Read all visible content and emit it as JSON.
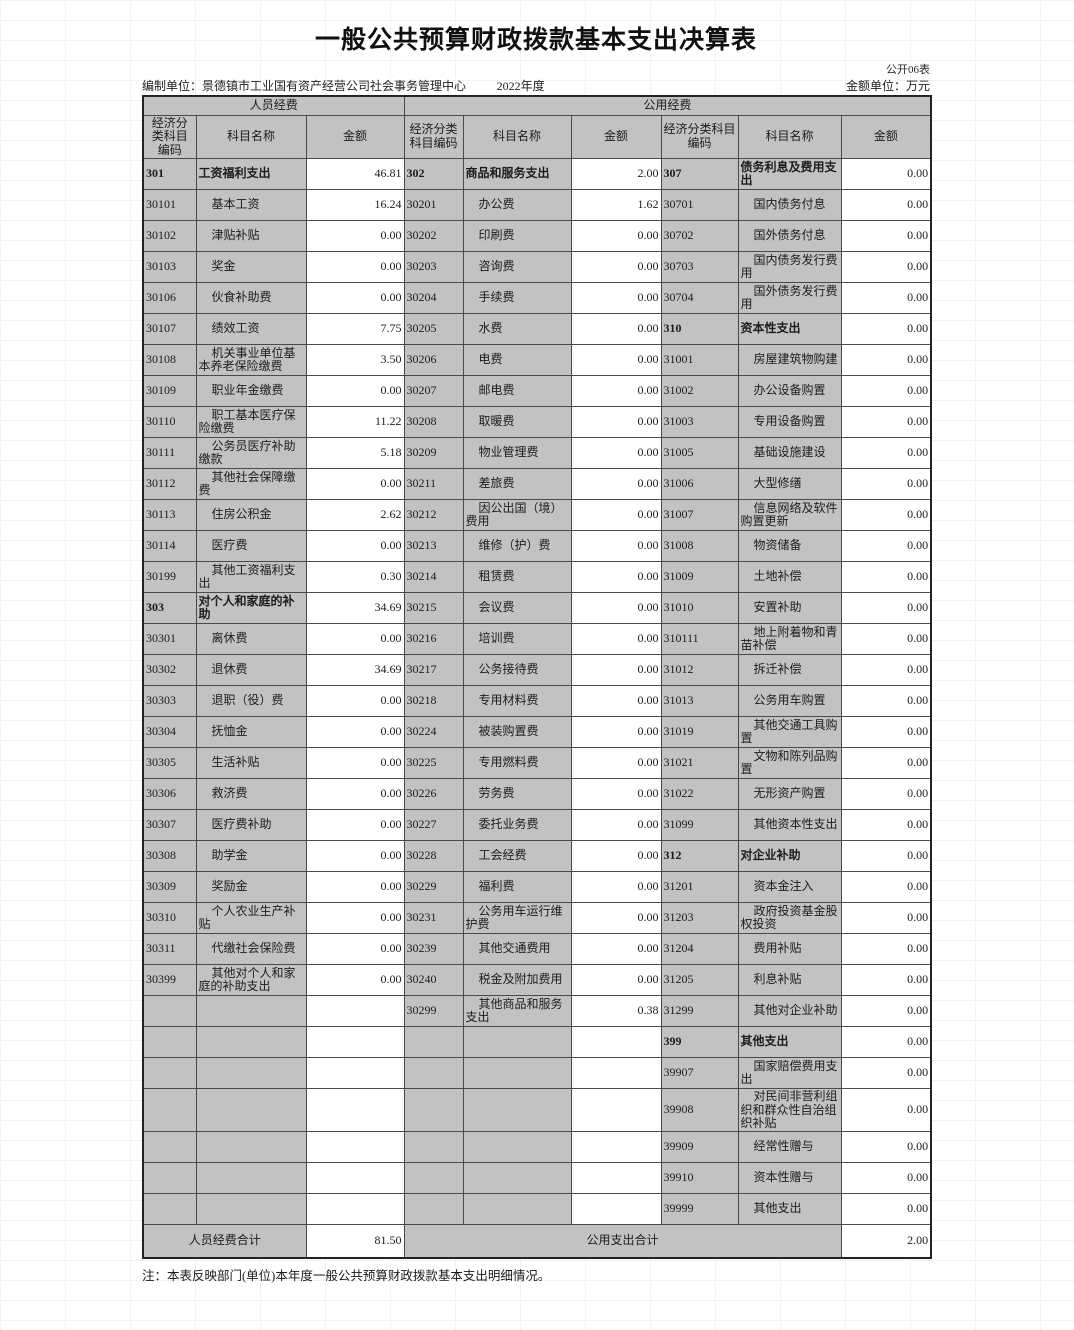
{
  "meta": {
    "title": "一般公共预算财政拨款基本支出决算表",
    "doc_code": "公开06表",
    "prepared_by": "编制单位：景德镇市工业国有资产经营公司社会事务管理中心",
    "fiscal_year": "2022年度",
    "amount_unit": "金额单位：万元",
    "footnote": "注：本表反映部门(单位)本年度一般公共预算财政拨款基本支出明细情况。"
  },
  "colors": {
    "cell_gray": "#c2c2c2",
    "border": "#4a4a4a",
    "background": "#ffffff"
  },
  "table": {
    "groups": [
      "人员经费",
      "公用经费"
    ],
    "columns": [
      "经济分类科目编码",
      "科目名称",
      "金额",
      "经济分类科目编码",
      "科目名称",
      "金额",
      "经济分类科目编码",
      "科目名称",
      "金额"
    ],
    "rows": [
      [
        [
          "301",
          "工资福利支出",
          "46.81",
          "b"
        ],
        [
          "302",
          "商品和服务支出",
          "2.00",
          "b"
        ],
        [
          "307",
          "债务利息及费用支出",
          "0.00",
          "b"
        ]
      ],
      [
        [
          "30101",
          "基本工资",
          "16.24",
          ""
        ],
        [
          "30201",
          "办公费",
          "1.62",
          ""
        ],
        [
          "30701",
          "国内债务付息",
          "0.00",
          ""
        ]
      ],
      [
        [
          "30102",
          "津贴补贴",
          "0.00",
          ""
        ],
        [
          "30202",
          "印刷费",
          "0.00",
          ""
        ],
        [
          "30702",
          "国外债务付息",
          "0.00",
          ""
        ]
      ],
      [
        [
          "30103",
          "奖金",
          "0.00",
          ""
        ],
        [
          "30203",
          "咨询费",
          "0.00",
          ""
        ],
        [
          "30703",
          "国内债务发行费用",
          "0.00",
          ""
        ]
      ],
      [
        [
          "30106",
          "伙食补助费",
          "0.00",
          ""
        ],
        [
          "30204",
          "手续费",
          "0.00",
          ""
        ],
        [
          "30704",
          "国外债务发行费用",
          "0.00",
          ""
        ]
      ],
      [
        [
          "30107",
          "绩效工资",
          "7.75",
          ""
        ],
        [
          "30205",
          "水费",
          "0.00",
          ""
        ],
        [
          "310",
          "资本性支出",
          "0.00",
          "b"
        ]
      ],
      [
        [
          "30108",
          "机关事业单位基本养老保险缴费",
          "3.50",
          ""
        ],
        [
          "30206",
          "电费",
          "0.00",
          ""
        ],
        [
          "31001",
          "房屋建筑物购建",
          "0.00",
          ""
        ]
      ],
      [
        [
          "30109",
          "职业年金缴费",
          "0.00",
          ""
        ],
        [
          "30207",
          "邮电费",
          "0.00",
          ""
        ],
        [
          "31002",
          "办公设备购置",
          "0.00",
          ""
        ]
      ],
      [
        [
          "30110",
          "职工基本医疗保险缴费",
          "11.22",
          ""
        ],
        [
          "30208",
          "取暖费",
          "0.00",
          ""
        ],
        [
          "31003",
          "专用设备购置",
          "0.00",
          ""
        ]
      ],
      [
        [
          "30111",
          "公务员医疗补助缴款",
          "5.18",
          ""
        ],
        [
          "30209",
          "物业管理费",
          "0.00",
          ""
        ],
        [
          "31005",
          "基础设施建设",
          "0.00",
          ""
        ]
      ],
      [
        [
          "30112",
          "其他社会保障缴费",
          "0.00",
          ""
        ],
        [
          "30211",
          "差旅费",
          "0.00",
          ""
        ],
        [
          "31006",
          "大型修缮",
          "0.00",
          ""
        ]
      ],
      [
        [
          "30113",
          "住房公积金",
          "2.62",
          ""
        ],
        [
          "30212",
          "因公出国（境）费用",
          "0.00",
          ""
        ],
        [
          "31007",
          "信息网络及软件购置更新",
          "0.00",
          ""
        ]
      ],
      [
        [
          "30114",
          "医疗费",
          "0.00",
          ""
        ],
        [
          "30213",
          "维修（护）费",
          "0.00",
          ""
        ],
        [
          "31008",
          "物资储备",
          "0.00",
          ""
        ]
      ],
      [
        [
          "30199",
          "其他工资福利支出",
          "0.30",
          ""
        ],
        [
          "30214",
          "租赁费",
          "0.00",
          ""
        ],
        [
          "31009",
          "土地补偿",
          "0.00",
          ""
        ]
      ],
      [
        [
          "303",
          "对个人和家庭的补助",
          "34.69",
          "b"
        ],
        [
          "30215",
          "会议费",
          "0.00",
          ""
        ],
        [
          "31010",
          "安置补助",
          "0.00",
          ""
        ]
      ],
      [
        [
          "30301",
          "离休费",
          "0.00",
          ""
        ],
        [
          "30216",
          "培训费",
          "0.00",
          ""
        ],
        [
          "310111",
          "地上附着物和青苗补偿",
          "0.00",
          ""
        ]
      ],
      [
        [
          "30302",
          "退休费",
          "34.69",
          ""
        ],
        [
          "30217",
          "公务接待费",
          "0.00",
          ""
        ],
        [
          "31012",
          "拆迁补偿",
          "0.00",
          ""
        ]
      ],
      [
        [
          "30303",
          "退职（役）费",
          "0.00",
          ""
        ],
        [
          "30218",
          "专用材料费",
          "0.00",
          ""
        ],
        [
          "31013",
          "公务用车购置",
          "0.00",
          ""
        ]
      ],
      [
        [
          "30304",
          "抚恤金",
          "0.00",
          ""
        ],
        [
          "30224",
          "被装购置费",
          "0.00",
          ""
        ],
        [
          "31019",
          "其他交通工具购置",
          "0.00",
          ""
        ]
      ],
      [
        [
          "30305",
          "生活补贴",
          "0.00",
          ""
        ],
        [
          "30225",
          "专用燃料费",
          "0.00",
          ""
        ],
        [
          "31021",
          "文物和陈列品购置",
          "0.00",
          ""
        ]
      ],
      [
        [
          "30306",
          "救济费",
          "0.00",
          ""
        ],
        [
          "30226",
          "劳务费",
          "0.00",
          ""
        ],
        [
          "31022",
          "无形资产购置",
          "0.00",
          ""
        ]
      ],
      [
        [
          "30307",
          "医疗费补助",
          "0.00",
          ""
        ],
        [
          "30227",
          "委托业务费",
          "0.00",
          ""
        ],
        [
          "31099",
          "其他资本性支出",
          "0.00",
          ""
        ]
      ],
      [
        [
          "30308",
          "助学金",
          "0.00",
          ""
        ],
        [
          "30228",
          "工会经费",
          "0.00",
          ""
        ],
        [
          "312",
          "对企业补助",
          "0.00",
          "b"
        ]
      ],
      [
        [
          "30309",
          "奖励金",
          "0.00",
          ""
        ],
        [
          "30229",
          "福利费",
          "0.00",
          ""
        ],
        [
          "31201",
          "资本金注入",
          "0.00",
          ""
        ]
      ],
      [
        [
          "30310",
          "个人农业生产补贴",
          "0.00",
          ""
        ],
        [
          "30231",
          "公务用车运行维护费",
          "0.00",
          ""
        ],
        [
          "31203",
          "政府投资基金股权投资",
          "0.00",
          ""
        ]
      ],
      [
        [
          "30311",
          "代缴社会保险费",
          "0.00",
          ""
        ],
        [
          "30239",
          "其他交通费用",
          "0.00",
          ""
        ],
        [
          "31204",
          "费用补贴",
          "0.00",
          ""
        ]
      ],
      [
        [
          "30399",
          "其他对个人和家庭的补助支出",
          "0.00",
          ""
        ],
        [
          "30240",
          "税金及附加费用",
          "0.00",
          ""
        ],
        [
          "31205",
          "利息补贴",
          "0.00",
          ""
        ]
      ],
      [
        [
          "",
          "",
          "",
          ""
        ],
        [
          "30299",
          "其他商品和服务支出",
          "0.38",
          ""
        ],
        [
          "31299",
          "其他对企业补助",
          "0.00",
          ""
        ]
      ],
      [
        [
          "",
          "",
          "",
          ""
        ],
        [
          "",
          "",
          "",
          ""
        ],
        [
          "399",
          "其他支出",
          "0.00",
          "b"
        ]
      ],
      [
        [
          "",
          "",
          "",
          ""
        ],
        [
          "",
          "",
          "",
          ""
        ],
        [
          "39907",
          "国家赔偿费用支出",
          "0.00",
          ""
        ]
      ],
      [
        [
          "",
          "",
          "",
          ""
        ],
        [
          "",
          "",
          "",
          ""
        ],
        [
          "39908",
          "对民间非营利组织和群众性自治组织补贴",
          "0.00",
          "clip"
        ]
      ],
      [
        [
          "",
          "",
          "",
          ""
        ],
        [
          "",
          "",
          "",
          ""
        ],
        [
          "39909",
          "经常性赠与",
          "0.00",
          ""
        ]
      ],
      [
        [
          "",
          "",
          "",
          ""
        ],
        [
          "",
          "",
          "",
          ""
        ],
        [
          "39910",
          "资本性赠与",
          "0.00",
          ""
        ]
      ],
      [
        [
          "",
          "",
          "",
          ""
        ],
        [
          "",
          "",
          "",
          ""
        ],
        [
          "39999",
          "其他支出",
          "0.00",
          ""
        ]
      ]
    ],
    "totals": {
      "personnel_label": "人员经费合计",
      "personnel_amount": "81.50",
      "public_label": "公用支出合计",
      "public_amount": "2.00"
    }
  }
}
